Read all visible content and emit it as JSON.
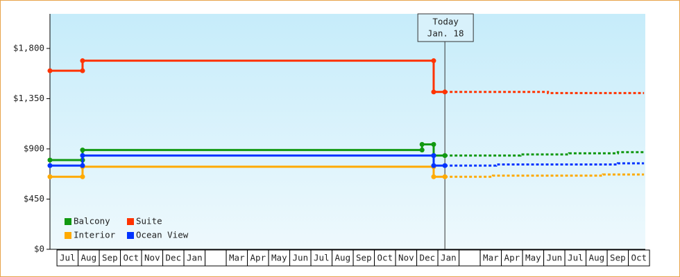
{
  "chart_data": {
    "type": "step-line",
    "categories": [
      "Jul",
      "Aug",
      "Sep",
      "Oct",
      "Nov",
      "Dec",
      "Jan",
      null,
      "Mar",
      "Apr",
      "May",
      "Jun",
      "Jul",
      "Aug",
      "Sep",
      "Oct",
      "Nov",
      "Dec",
      "Jan",
      null,
      "Mar",
      "Apr",
      "May",
      "Jun",
      "Jul",
      "Aug",
      "Sep",
      "Oct"
    ],
    "xlim": [
      -0.33,
      27.8
    ],
    "ylim": [
      0,
      2110
    ],
    "yticks": [
      {
        "value": 0,
        "label": "$0"
      },
      {
        "value": 450,
        "label": "$450"
      },
      {
        "value": 900,
        "label": "$900"
      },
      {
        "value": 1350,
        "label": "$1,350"
      },
      {
        "value": 1800,
        "label": "$1,800"
      }
    ],
    "today": {
      "lines": [
        "Today",
        "Jan. 18"
      ],
      "x": 18.33
    },
    "series": [
      {
        "name": "Balcony",
        "color": "#119911",
        "x": [
          -0.33,
          1.21,
          1.21,
          17.25,
          17.25,
          17.8,
          17.8,
          18.33
        ],
        "values": [
          800,
          800,
          890,
          890,
          940,
          940,
          840,
          840
        ],
        "forecast_x": [
          18.33,
          21.9,
          21.9,
          24.2,
          24.2,
          26.5,
          26.5,
          27.74
        ],
        "forecast_values": [
          840,
          840,
          850,
          850,
          860,
          860,
          870,
          870
        ]
      },
      {
        "name": "Suite",
        "color": "#ff3300",
        "x": [
          -0.33,
          1.21,
          1.21,
          17.8,
          17.8,
          18.33
        ],
        "values": [
          1600,
          1600,
          1690,
          1690,
          1410,
          1410
        ],
        "forecast_x": [
          18.33,
          23.2,
          23.2,
          27.74
        ],
        "forecast_values": [
          1410,
          1410,
          1400,
          1400
        ]
      },
      {
        "name": "Interior",
        "color": "#ffaa00",
        "x": [
          -0.33,
          1.21,
          1.21,
          17.8,
          17.8,
          18.33
        ],
        "values": [
          650,
          650,
          740,
          740,
          650,
          650
        ],
        "forecast_x": [
          18.33,
          20.6,
          20.6,
          25.8,
          25.8,
          27.74
        ],
        "forecast_values": [
          650,
          650,
          660,
          660,
          670,
          670
        ]
      },
      {
        "name": "Ocean View",
        "color": "#0033ff",
        "x": [
          -0.33,
          1.21,
          1.21,
          17.8,
          17.8,
          18.33
        ],
        "values": [
          750,
          750,
          840,
          840,
          750,
          750
        ],
        "forecast_x": [
          18.33,
          20.75,
          20.75,
          26.5,
          26.5,
          27.74
        ],
        "forecast_values": [
          750,
          750,
          760,
          760,
          770,
          770
        ]
      }
    ]
  }
}
